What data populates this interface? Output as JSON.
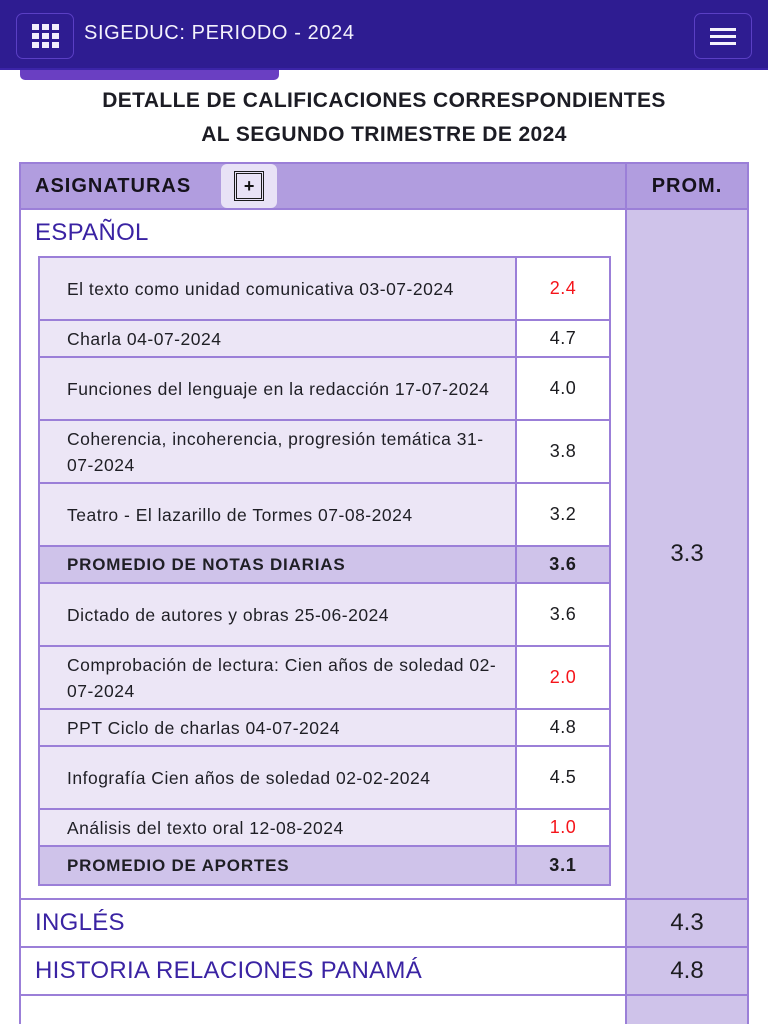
{
  "header": {
    "app_title": "SIGEDUC: PERIODO - 2024",
    "apps_icon": "grid-icon",
    "menu_icon": "hamburger-icon"
  },
  "page": {
    "heading_line1": "DETALLE DE CALIFICACIONES CORRESPONDIENTES",
    "heading_line2": "AL SEGUNDO TRIMESTRE DE 2024"
  },
  "table": {
    "col_subjects": "ASIGNATURAS",
    "expand_label": "+",
    "col_average": "PROM.",
    "subjects": [
      {
        "name": "ESPAÑOL",
        "average": "3.3",
        "daily_grades": [
          {
            "desc": "El texto como unidad comunicativa 03-07-2024",
            "grade": "2.4",
            "low": true
          },
          {
            "desc": "Charla 04-07-2024",
            "grade": "4.7",
            "low": false
          },
          {
            "desc": "Funciones del lenguaje en la redacción 17-07-2024",
            "grade": "4.0",
            "low": false
          },
          {
            "desc": "Coherencia, incoherencia, progresión temática 31-07-2024",
            "grade": "3.8",
            "low": false
          },
          {
            "desc": "Teatro - El lazarillo de Tormes 07-08-2024",
            "grade": "3.2",
            "low": false
          }
        ],
        "daily_avg_label": "PROMEDIO DE NOTAS DIARIAS",
        "daily_avg": "3.6",
        "contributions": [
          {
            "desc": "Dictado de autores y obras 25-06-2024",
            "grade": "3.6",
            "low": false
          },
          {
            "desc": "Comprobación de lectura: Cien años de soledad 02-07-2024",
            "grade": "2.0",
            "low": true
          },
          {
            "desc": "PPT Ciclo de charlas 04-07-2024",
            "grade": "4.8",
            "low": false
          },
          {
            "desc": "Infografía Cien años de soledad 02-02-2024",
            "grade": "4.5",
            "low": false
          },
          {
            "desc": "Análisis del texto oral 12-08-2024",
            "grade": "1.0",
            "low": true
          }
        ],
        "contrib_avg_label": "PROMEDIO DE APORTES",
        "contrib_avg": "3.1"
      },
      {
        "name": "INGLÉS",
        "average": "4.3"
      },
      {
        "name": "HISTORIA RELACIONES PANAMÁ",
        "average": "4.8"
      }
    ]
  },
  "colors": {
    "header_bg": "#2e1c91",
    "table_header_bg": "#b19ddf",
    "average_bg": "#cfc3ea",
    "row_bg": "#ece6f6",
    "border": "#9b7fd8",
    "subject_text": "#3a23a3",
    "low_grade": "#f5141a"
  }
}
